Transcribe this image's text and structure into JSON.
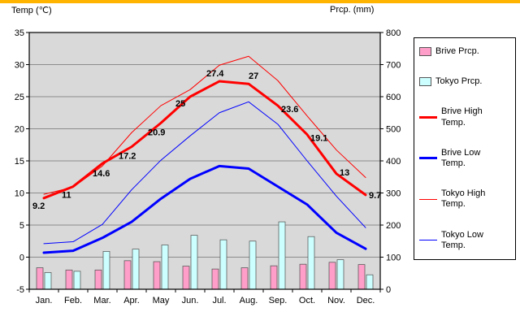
{
  "page": {
    "temp_axis_title": "Temp (℃)",
    "prcp_axis_title": "Prcp. (mm)"
  },
  "colors": {
    "top_strip": "#FFB400",
    "plot_bg": "#D9D9D9",
    "grid": "#8C8C8C",
    "axis_text": "#000000",
    "plot_border": "#000000"
  },
  "chart_data": {
    "type": "combo",
    "categories": [
      "Jan.",
      "Feb.",
      "Mar.",
      "Apr.",
      "May",
      "Jun.",
      "Jul.",
      "Aug.",
      "Sep.",
      "Oct.",
      "Nov.",
      "Dec."
    ],
    "temp_axis": {
      "min": -5,
      "max": 35,
      "step": 5,
      "ticks": [
        35,
        30,
        25,
        20,
        15,
        10,
        5,
        0,
        -5
      ]
    },
    "prcp_axis": {
      "min": 0,
      "max": 800,
      "step": 100,
      "ticks": [
        800,
        700,
        600,
        500,
        400,
        300,
        200,
        100,
        0
      ]
    },
    "series": [
      {
        "name": "Brive Prcp.",
        "type": "bar",
        "axis": "prcp",
        "color": "#FF9EC8",
        "values": [
          67,
          60,
          60,
          89,
          86,
          72,
          63,
          67,
          73,
          78,
          84,
          77
        ]
      },
      {
        "name": "Tokyo Prcp.",
        "type": "bar",
        "axis": "prcp",
        "color": "#CCFFFF",
        "values": [
          52,
          56,
          118,
          125,
          138,
          168,
          154,
          150,
          210,
          164,
          92,
          45
        ]
      },
      {
        "name": "Brive High Temp.",
        "type": "line",
        "axis": "temp",
        "color": "#FF0000",
        "width": 3,
        "values": [
          9.2,
          11,
          14.6,
          17.2,
          20.9,
          25,
          27.4,
          27,
          23.6,
          19.1,
          13,
          9.7
        ],
        "point_labels": [
          "9.2",
          "11",
          "14.6",
          "17.2",
          "20.9",
          "25",
          "27.4",
          "27",
          "23.6",
          "19.1",
          "13",
          "9.7"
        ]
      },
      {
        "name": "Brive Low Temp.",
        "type": "line",
        "axis": "temp",
        "color": "#0000FF",
        "width": 3,
        "values": [
          0.7,
          1,
          3,
          5.5,
          9.1,
          12.2,
          14.2,
          13.8,
          11,
          8.2,
          3.8,
          1.3
        ]
      },
      {
        "name": "Tokyo High Temp.",
        "type": "line",
        "axis": "temp",
        "color": "#FF0000",
        "width": 1,
        "values": [
          9.8,
          10.9,
          14.2,
          19.4,
          23.6,
          26.1,
          29.9,
          31.3,
          27.5,
          22,
          16.7,
          12.4
        ]
      },
      {
        "name": "Tokyo Low Temp.",
        "type": "line",
        "axis": "temp",
        "color": "#0000FF",
        "width": 1,
        "values": [
          2.1,
          2.4,
          5.1,
          10.5,
          15.1,
          18.9,
          22.5,
          24.2,
          20.7,
          15,
          9.5,
          4.6
        ]
      }
    ],
    "legend_position": "right",
    "grid": true
  }
}
